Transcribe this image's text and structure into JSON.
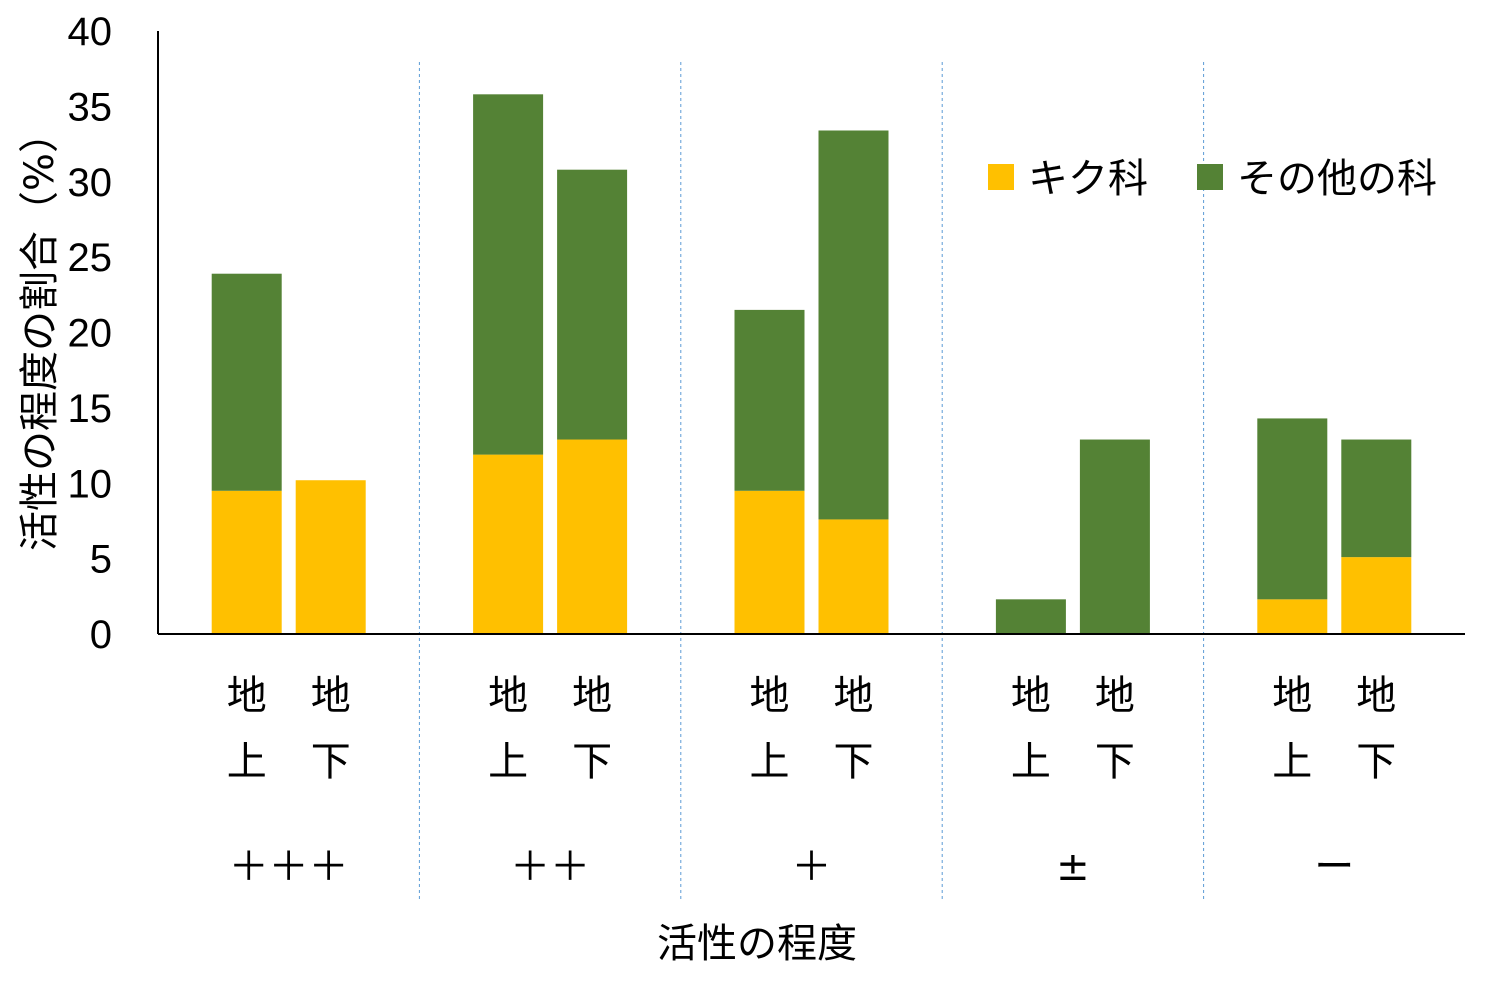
{
  "chart_data": {
    "type": "bar",
    "stacked": true,
    "ylabel": "活性の程度の割合（%）",
    "xlabel": "活性の程度",
    "ylim": [
      0,
      40
    ],
    "yticks": [
      0,
      5,
      10,
      15,
      20,
      25,
      30,
      35,
      40
    ],
    "groups": [
      {
        "label": "＋＋＋",
        "categories": [
          "地上",
          "地下"
        ]
      },
      {
        "label": "＋＋",
        "categories": [
          "地上",
          "地下"
        ]
      },
      {
        "label": "＋",
        "categories": [
          "地上",
          "地下"
        ]
      },
      {
        "label": "±",
        "categories": [
          "地上",
          "地下"
        ]
      },
      {
        "label": "ー",
        "categories": [
          "地上",
          "地下"
        ]
      }
    ],
    "series": [
      {
        "name": "キク科",
        "color": "#FFC000",
        "values": [
          9.5,
          10.2,
          11.9,
          12.9,
          9.5,
          7.6,
          0,
          0,
          2.3,
          5.1
        ]
      },
      {
        "name": "その他の科",
        "color": "#548235",
        "values": [
          14.4,
          0,
          23.9,
          17.9,
          12.0,
          25.8,
          2.3,
          12.9,
          12.0,
          7.8
        ]
      }
    ],
    "legend": "top-right",
    "grid": false
  }
}
